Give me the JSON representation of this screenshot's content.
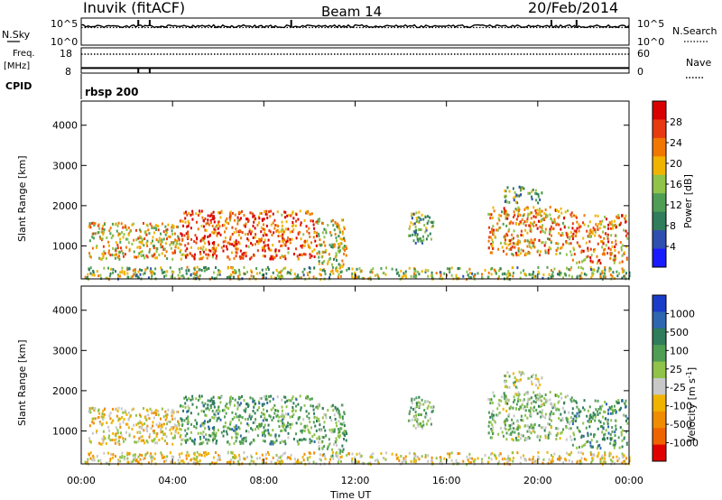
{
  "header": {
    "station": "Inuvik (fitACF)",
    "beam": "Beam 14",
    "date": "20/Feb/2014"
  },
  "panels": {
    "nsky": {
      "left_label": "N.Sky",
      "ticks": [
        "10^5",
        "10^0"
      ],
      "right_label": "N.Search",
      "right_ticks": [
        "10^5",
        "10^0"
      ]
    },
    "freq": {
      "left_label": "Freq.",
      "unit": "[MHz]",
      "ticks": [
        "18",
        "8"
      ],
      "right_label": "Nave",
      "right_ticks": [
        "60",
        "0"
      ]
    },
    "cpid": {
      "label": "CPID",
      "value": "rbsp 200"
    }
  },
  "x_ticks": [
    "00:00",
    "04:00",
    "08:00",
    "12:00",
    "16:00",
    "20:00",
    "00:00"
  ],
  "x_label": "Time UT",
  "y_label": "Slant Range [km]",
  "y_ticks": [
    "1000",
    "2000",
    "3000",
    "4000"
  ],
  "power_scale": {
    "label": "Power [dB]",
    "ticks": [
      "4",
      "8",
      "12",
      "16",
      "20",
      "24",
      "28"
    ],
    "colors": [
      "#1a1aff",
      "#2e4fb0",
      "#2f7d5a",
      "#4f9e55",
      "#8fc34a",
      "#f0b400",
      "#f07800",
      "#e83a10",
      "#d80000"
    ]
  },
  "velocity_scale": {
    "label": "Velocity [m s",
    "label_sup": "-1",
    "label_end": "]",
    "ticks": [
      "1000",
      "500",
      "100",
      "25",
      "-25",
      "-100",
      "-500",
      "-1000"
    ],
    "colors": [
      "#1a3cc8",
      "#2e66b0",
      "#2f7d5a",
      "#4f9e55",
      "#8fc34a",
      "#c8c8c8",
      "#f0b400",
      "#f08c00",
      "#f06400",
      "#e00000"
    ]
  },
  "chart_data": {
    "type": "heatmap",
    "title": "Beam 14",
    "xlabel": "Time UT",
    "ylabel": "Slant Range [km]",
    "xlim": [
      "00:00",
      "24:00"
    ],
    "ylim": [
      180,
      4600
    ],
    "panels": [
      {
        "quantity": "Power [dB]",
        "range": [
          0,
          30
        ],
        "regions": [
          {
            "t": [
              0.3,
              4.3
            ],
            "r": [
              700,
              1600
            ],
            "value": 18
          },
          {
            "t": [
              4.3,
              10.3
            ],
            "r": [
              700,
              1900
            ],
            "value": 24
          },
          {
            "t": [
              10.3,
              11.6
            ],
            "r": [
              400,
              1700
            ],
            "value": 16
          },
          {
            "t": [
              14.3,
              15.4
            ],
            "r": [
              1100,
              1900
            ],
            "value": 12
          },
          {
            "t": [
              17.8,
              21.5
            ],
            "r": [
              800,
              2000
            ],
            "value": 20
          },
          {
            "t": [
              21.5,
              23.9
            ],
            "r": [
              600,
              1800
            ],
            "value": 22
          },
          {
            "t": [
              0.0,
              24.0
            ],
            "r": [
              200,
              500
            ],
            "value": 14
          },
          {
            "t": [
              18.5,
              20.2
            ],
            "r": [
              2100,
              2500
            ],
            "value": 12
          }
        ]
      },
      {
        "quantity": "Velocity [m s-1]",
        "range": [
          -1000,
          1000
        ],
        "regions": [
          {
            "t": [
              0.3,
              4.3
            ],
            "r": [
              700,
              1600
            ],
            "value": -200
          },
          {
            "t": [
              4.3,
              10.3
            ],
            "r": [
              700,
              1900
            ],
            "value": 300
          },
          {
            "t": [
              10.3,
              11.6
            ],
            "r": [
              400,
              1700
            ],
            "value": 200
          },
          {
            "t": [
              14.3,
              15.4
            ],
            "r": [
              1100,
              1900
            ],
            "value": 150
          },
          {
            "t": [
              17.8,
              21.5
            ],
            "r": [
              800,
              2000
            ],
            "value": 120
          },
          {
            "t": [
              21.5,
              23.9
            ],
            "r": [
              600,
              1800
            ],
            "value": 400
          },
          {
            "t": [
              0.0,
              24.0
            ],
            "r": [
              200,
              500
            ],
            "value": -200
          },
          {
            "t": [
              18.5,
              20.2
            ],
            "r": [
              2100,
              2500
            ],
            "value": -30
          }
        ]
      }
    ],
    "nsky": {
      "level": 0.7,
      "spikes_hours": [
        2.5,
        3.0,
        9.2,
        20.6,
        21.7
      ]
    },
    "nsearch": {
      "level": 0.65
    },
    "freq_mhz": 10,
    "nave": 45,
    "cpid_drops_hours": [
      2.5,
      3.0
    ]
  }
}
